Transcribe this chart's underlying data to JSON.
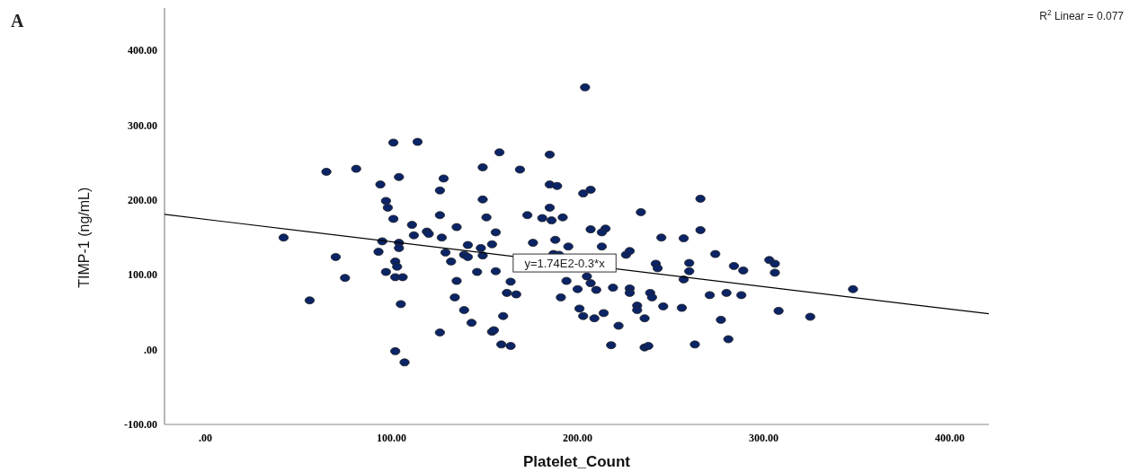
{
  "chart_data": {
    "type": "scatter",
    "xlabel": "Platelet_Count",
    "ylabel": "TIMP-1 (ng/mL)",
    "annotations": [
      "A",
      "R$^{2}$ Linear = 0.077",
      {
        "text": "y=1.74E2-0.3*x",
        "x": 193,
        "y": 116
      }
    ],
    "xlim": [
      -22,
      421
    ],
    "ylim": [
      -100,
      457
    ],
    "xticks": [
      {
        "value": 0,
        "label": ".00"
      },
      {
        "value": 100,
        "label": "100.00"
      },
      {
        "value": 200,
        "label": "200.00"
      },
      {
        "value": 300,
        "label": "300.00"
      },
      {
        "value": 400,
        "label": "400.00"
      }
    ],
    "yticks": [
      {
        "value": -100,
        "label": "-100.00"
      },
      {
        "value": 0,
        "label": ".00"
      },
      {
        "value": 100,
        "label": "100.00"
      },
      {
        "value": 200,
        "label": "200.00"
      },
      {
        "value": 300,
        "label": "300.00"
      },
      {
        "value": 400,
        "label": "400.00"
      }
    ],
    "grid": false,
    "marker": "circle",
    "series": [
      {
        "color": "#0b2466",
        "x": [
          101,
          114,
          65,
          81,
          104,
          128,
          94,
          126,
          97,
          98,
          101,
          126,
          111,
          135,
          119,
          120,
          112,
          127,
          42,
          95,
          104,
          104,
          93,
          129,
          70,
          102,
          132,
          103,
          97,
          102,
          106,
          135,
          75,
          134,
          56,
          105,
          126,
          102,
          107,
          204,
          158,
          185,
          149,
          169,
          185,
          189,
          203,
          207,
          149,
          266,
          185,
          234,
          151,
          173,
          181,
          186,
          192,
          207,
          215,
          213,
          266,
          156,
          141,
          154,
          176,
          188,
          195,
          213,
          245,
          257,
          148,
          149,
          139,
          141,
          187,
          190,
          226,
          228,
          274,
          242,
          243,
          260,
          260,
          284,
          289,
          146,
          156,
          164,
          194,
          205,
          207,
          257,
          162,
          167,
          191,
          200,
          210,
          219,
          228,
          228,
          239,
          240,
          271,
          280,
          288,
          139,
          143,
          160,
          201,
          203,
          209,
          214,
          222,
          232,
          232,
          236,
          246,
          256,
          277,
          281,
          154,
          155,
          159,
          164,
          218,
          236,
          238,
          263,
          303,
          306,
          306,
          308,
          325,
          348
        ],
        "values": [
          277,
          278,
          238,
          242,
          231,
          229,
          221,
          213,
          199,
          190,
          175,
          180,
          167,
          164,
          158,
          155,
          153,
          150,
          150,
          145,
          143,
          136,
          131,
          130,
          124,
          118,
          118,
          111,
          104,
          97,
          97,
          92,
          96,
          70,
          66,
          61,
          23,
          -2,
          -17,
          351,
          264,
          261,
          244,
          241,
          221,
          219,
          209,
          214,
          201,
          202,
          190,
          184,
          177,
          180,
          176,
          173,
          177,
          161,
          162,
          157,
          160,
          157,
          140,
          141,
          143,
          147,
          138,
          138,
          150,
          149,
          136,
          126,
          127,
          124,
          128,
          127,
          127,
          132,
          128,
          115,
          109,
          116,
          105,
          112,
          106,
          104,
          105,
          91,
          92,
          98,
          89,
          94,
          76,
          74,
          70,
          81,
          80,
          83,
          82,
          76,
          76,
          70,
          73,
          76,
          73,
          53,
          36,
          45,
          55,
          45,
          42,
          49,
          32,
          59,
          53,
          42,
          58,
          56,
          40,
          14,
          24,
          26,
          7,
          5,
          6,
          3,
          5,
          7,
          120,
          115,
          103,
          52,
          44,
          81
        ]
      },
      {
        "type": "line",
        "color": "#000000",
        "marker": "none",
        "x": [
          -22,
          421
        ],
        "values": [
          181,
          48
        ]
      }
    ]
  }
}
